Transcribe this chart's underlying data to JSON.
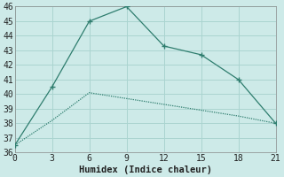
{
  "line1_x": [
    0,
    3,
    6,
    9,
    12,
    15,
    18,
    21
  ],
  "line1_y": [
    36.5,
    40.5,
    45.0,
    46.0,
    43.3,
    42.7,
    41.0,
    38.0
  ],
  "line2_x": [
    0,
    3,
    6,
    9,
    12,
    15,
    18,
    21
  ],
  "line2_y": [
    36.5,
    38.2,
    40.1,
    39.7,
    39.3,
    38.9,
    38.5,
    38.0
  ],
  "line_color": "#2e7d6e",
  "bg_color": "#cdeae8",
  "grid_color": "#aad4d0",
  "xlabel": "Humidex (Indice chaleur)",
  "xlim": [
    0,
    21
  ],
  "ylim": [
    36,
    46
  ],
  "xticks": [
    0,
    3,
    6,
    9,
    12,
    15,
    18,
    21
  ],
  "yticks": [
    36,
    37,
    38,
    39,
    40,
    41,
    42,
    43,
    44,
    45,
    46
  ],
  "xlabel_fontsize": 7.5,
  "tick_fontsize": 7.0
}
